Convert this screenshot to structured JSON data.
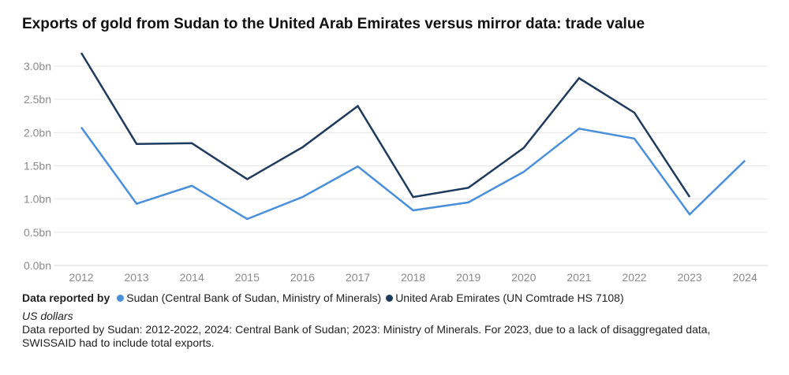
{
  "chart_data": {
    "type": "line",
    "title": "Exports of gold from Sudan to the United Arab Emirates versus mirror data: trade value",
    "xlabel": "",
    "ylabel": "US dollars",
    "x": [
      2012,
      2013,
      2014,
      2015,
      2016,
      2017,
      2018,
      2019,
      2020,
      2021,
      2022,
      2023,
      2024
    ],
    "x_tick_labels": [
      "2012",
      "2013",
      "2014",
      "2015",
      "2016",
      "2017",
      "2018",
      "2019",
      "2020",
      "2021",
      "2022",
      "2023",
      "2024"
    ],
    "y_ticks": [
      0,
      0.5,
      1.0,
      1.5,
      2.0,
      2.5,
      3.0
    ],
    "y_tick_labels": [
      "0.0bn",
      "0.5bn",
      "1.0bn",
      "1.5bn",
      "2.0bn",
      "2.5bn",
      "3.0bn"
    ],
    "ylim": [
      0,
      3.0
    ],
    "grid": true,
    "legend_title": "Data reported by",
    "legend_position": "bottom-left",
    "series": [
      {
        "name": "Sudan (Central Bank of Sudan, Ministry of Minerals)",
        "color": "#4a8fdb",
        "values": [
          2.08,
          0.93,
          1.2,
          0.7,
          1.03,
          1.49,
          0.83,
          0.95,
          1.41,
          2.06,
          1.91,
          0.77,
          1.58
        ]
      },
      {
        "name": "United Arab Emirates (UN Comtrade HS 7108)",
        "color": "#1f3a5f",
        "values": [
          3.2,
          1.83,
          1.84,
          1.3,
          1.78,
          2.4,
          1.03,
          1.17,
          1.77,
          2.82,
          2.3,
          1.03,
          null
        ]
      }
    ]
  },
  "footer": {
    "unit": "US dollars",
    "note": "Data reported by Sudan: 2012-2022, 2024: Central Bank of Sudan; 2023: Ministry of Minerals. For 2023, due to a lack of disaggregated data, SWISSAID had to include total exports."
  }
}
